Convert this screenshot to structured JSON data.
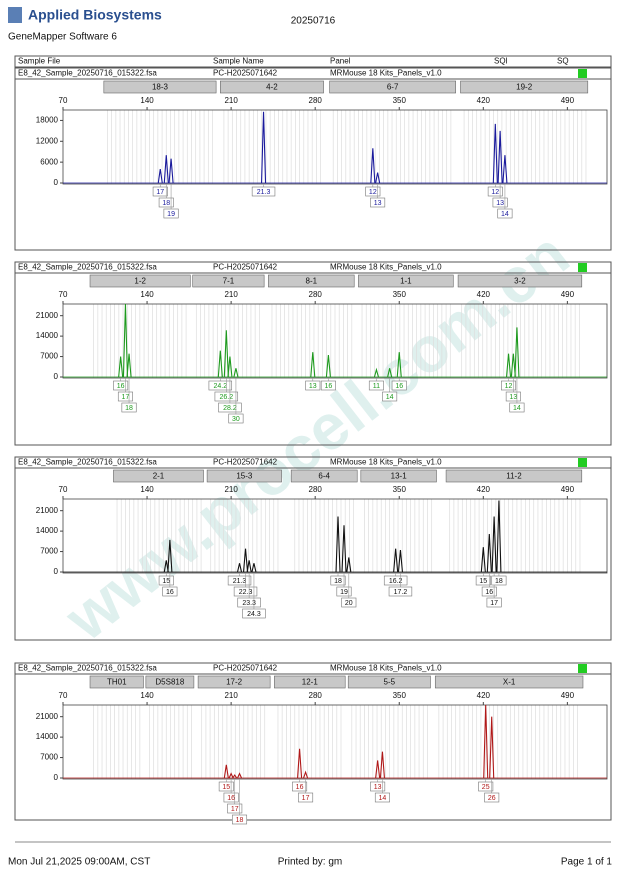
{
  "header": {
    "brand": "Applied Biosystems",
    "software": "GeneMapper Software 6",
    "date": "20250716"
  },
  "columns": [
    "Sample File",
    "Sample Name",
    "Panel",
    "SQI",
    "SQ"
  ],
  "watermark": "www.procell.com.cn",
  "chart_data": [
    {
      "type": "line",
      "sample_file": "E8_42_Sample_20250716_015322.fsa",
      "sample_name": "PC-H2025071642",
      "panel": "MRMouse 18 Kits_Panels_v1.0",
      "sq_color": "#22cc22",
      "color": "#1a1a9c",
      "xlim": [
        70,
        523
      ],
      "xticks": [
        70,
        140,
        210,
        280,
        350,
        420,
        490
      ],
      "ylim": [
        0,
        21000
      ],
      "yticks": [
        0,
        6000,
        12000,
        18000
      ],
      "loci": [
        {
          "name": "18-3",
          "range": [
            104,
            197.5
          ]
        },
        {
          "name": "4-2",
          "range": [
            201,
            287
          ]
        },
        {
          "name": "6-7",
          "range": [
            292,
            397
          ]
        },
        {
          "name": "19-2",
          "range": [
            401,
            507
          ]
        }
      ],
      "x": [
        151,
        156,
        160,
        237,
        328,
        332,
        430,
        434,
        438
      ],
      "values": [
        4000,
        8000,
        7000,
        20500,
        10000,
        3000,
        17000,
        15000,
        8000
      ],
      "alleles": [
        "17",
        "18",
        "19",
        "21.3",
        "12",
        "13",
        "12",
        "13",
        "14"
      ]
    },
    {
      "type": "line",
      "sample_file": "E8_42_Sample_20250716_015322.fsa",
      "sample_name": "PC-H2025071642",
      "panel": "MRMouse 18 Kits_Panels_v1.0",
      "sq_color": "#22cc22",
      "color": "#1e9a1e",
      "xlim": [
        70,
        523
      ],
      "xticks": [
        70,
        140,
        210,
        280,
        350,
        420,
        490
      ],
      "ylim": [
        0,
        25000
      ],
      "yticks": [
        0,
        7000,
        14000,
        21000
      ],
      "loci": [
        {
          "name": "1-2",
          "range": [
            92.5,
            176
          ]
        },
        {
          "name": "7-1",
          "range": [
            178,
            237.5
          ]
        },
        {
          "name": "8-1",
          "range": [
            241,
            312.5
          ]
        },
        {
          "name": "1-1",
          "range": [
            316,
            395
          ]
        },
        {
          "name": "3-2",
          "range": [
            399,
            502
          ]
        }
      ],
      "x": [
        118,
        122,
        125,
        201,
        206,
        209,
        214,
        278,
        291,
        331,
        342,
        350,
        441,
        445,
        448
      ],
      "values": [
        7000,
        25000,
        8000,
        9000,
        16000,
        7000,
        3000,
        8500,
        7500,
        2500,
        3000,
        8500,
        8000,
        8000,
        17000
      ],
      "alleles": [
        "16",
        "17",
        "18",
        "24.2",
        "26.2",
        "28.2",
        "30",
        "13",
        "16",
        "11",
        "14",
        "16",
        "12",
        "13",
        "14"
      ]
    },
    {
      "type": "line",
      "sample_file": "E8_42_Sample_20250716_015322.fsa",
      "sample_name": "PC-H2025071642",
      "panel": "MRMouse 18 Kits_Panels_v1.0",
      "sq_color": "#22cc22",
      "color": "#111111",
      "xlim": [
        70,
        523
      ],
      "xticks": [
        70,
        140,
        210,
        280,
        350,
        420,
        490
      ],
      "ylim": [
        0,
        25000
      ],
      "yticks": [
        0,
        7000,
        14000,
        21000
      ],
      "loci": [
        {
          "name": "2-1",
          "range": [
            112,
            187
          ]
        },
        {
          "name": "15-3",
          "range": [
            190,
            252
          ]
        },
        {
          "name": "6-4",
          "range": [
            260,
            315
          ]
        },
        {
          "name": "13-1",
          "range": [
            318,
            381
          ]
        },
        {
          "name": "11-2",
          "range": [
            389,
            502
          ]
        }
      ],
      "x": [
        156,
        159,
        217,
        222,
        225,
        229,
        299,
        304,
        308,
        347,
        351,
        420,
        425,
        429,
        433
      ],
      "values": [
        4000,
        11000,
        3000,
        8000,
        4000,
        3000,
        19000,
        16000,
        5000,
        8000,
        7500,
        8500,
        13000,
        19000,
        24500
      ],
      "alleles": [
        "15",
        "16",
        "21.3",
        "22.3",
        "23.3",
        "24.3",
        "18",
        "19",
        "20",
        "16.2",
        "17.2",
        "15",
        "16",
        "17",
        "18"
      ]
    },
    {
      "type": "line",
      "sample_file": "E8_42_Sample_20250716_015322.fsa",
      "sample_name": "PC-H2025071642",
      "panel": "MRMouse 18 Kits_Panels_v1.0",
      "sq_color": "#22cc22",
      "color": "#b01818",
      "xlim": [
        70,
        523
      ],
      "xticks": [
        70,
        140,
        210,
        280,
        350,
        420,
        490
      ],
      "ylim": [
        0,
        25000
      ],
      "yticks": [
        0,
        7000,
        14000,
        21000
      ],
      "loci": [
        {
          "name": "TH01",
          "range": [
            92.5,
            137
          ]
        },
        {
          "name": "D5S818",
          "range": [
            139,
            179
          ]
        },
        {
          "name": "17-2",
          "range": [
            182.5,
            242.5
          ]
        },
        {
          "name": "12-1",
          "range": [
            246,
            305
          ]
        },
        {
          "name": "5-5",
          "range": [
            307.5,
            376
          ]
        },
        {
          "name": "X-1",
          "range": [
            380,
            503
          ]
        }
      ],
      "x": [
        206,
        210,
        213,
        217,
        267,
        272,
        332,
        336,
        422,
        427
      ],
      "values": [
        4500,
        1500,
        1000,
        1500,
        10000,
        2000,
        6000,
        9000,
        25000,
        21000
      ],
      "alleles": [
        "15",
        "16",
        "17",
        "18",
        "16",
        "17",
        "13",
        "14",
        "25",
        "26"
      ]
    }
  ],
  "footer": {
    "printed_on": "Mon Jul 21,2025 09:00AM, CST",
    "printed_by": "Printed by: gm",
    "page": "Page 1 of 1"
  }
}
